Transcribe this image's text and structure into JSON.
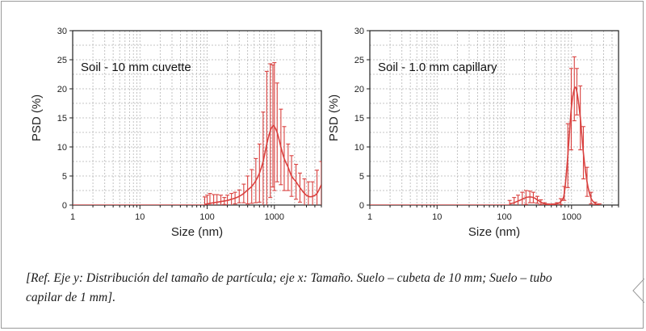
{
  "chart_data": [
    {
      "type": "line",
      "title": "",
      "annotation": "Soil - 10 mm cuvette",
      "xlabel": "Size (nm)",
      "ylabel": "PSD (%)",
      "xscale": "log",
      "xlim": [
        1,
        5000
      ],
      "ylim": [
        0,
        30
      ],
      "xticks": [
        1,
        10,
        100,
        1000
      ],
      "xtick_labels": [
        "1",
        "10",
        "100",
        "1000"
      ],
      "yticks": [
        0,
        5,
        10,
        15,
        20,
        25,
        30
      ],
      "ytick_labels": [
        "0",
        "5",
        "10",
        "15",
        "20",
        "25",
        "30"
      ],
      "grid": true,
      "color": "#d9413f",
      "series": [
        {
          "x": [
            92,
            100,
            110,
            125,
            140,
            160,
            180,
            200,
            230,
            260,
            300,
            350,
            400,
            460,
            530,
            600,
            680,
            770,
            870,
            950,
            1000,
            1100,
            1250,
            1400,
            1600,
            1800,
            2100,
            2400,
            2800,
            3200,
            3700,
            4300,
            5000
          ],
          "y": [
            0.1,
            0.2,
            0.3,
            0.4,
            0.5,
            0.6,
            0.7,
            0.8,
            1.0,
            1.2,
            1.5,
            2.0,
            2.6,
            3.2,
            4.2,
            5.5,
            7.5,
            10.5,
            12.8,
            13.6,
            13.5,
            12.5,
            10.0,
            8.0,
            6.5,
            5.0,
            4.0,
            3.0,
            2.0,
            1.5,
            1.5,
            2.0,
            3.5
          ],
          "err": [
            1.3,
            1.5,
            1.7,
            1.4,
            1.3,
            1.1,
            0.6,
            0.9,
            1.0,
            1.0,
            1.1,
            1.6,
            2.4,
            2.9,
            3.8,
            5.0,
            8.5,
            12.5,
            11.5,
            10.5,
            11.0,
            8.5,
            6.5,
            5.5,
            4.0,
            3.5,
            3.0,
            2.5,
            2.5,
            2.5,
            2.5,
            4.0,
            4.0
          ]
        }
      ]
    },
    {
      "type": "line",
      "title": "",
      "annotation": "Soil - 1.0 mm capillary",
      "xlabel": "Size (nm)",
      "ylabel": "PSD (%)",
      "xscale": "log",
      "xlim": [
        1,
        5000
      ],
      "ylim": [
        0,
        30
      ],
      "xticks": [
        1,
        10,
        100,
        1000
      ],
      "xtick_labels": [
        "1",
        "10",
        "100",
        "1000"
      ],
      "yticks": [
        0,
        5,
        10,
        15,
        20,
        25,
        30
      ],
      "ytick_labels": [
        "0",
        "5",
        "10",
        "15",
        "20",
        "25",
        "30"
      ],
      "grid": true,
      "color": "#d9413f",
      "series": [
        {
          "x": [
            120,
            140,
            160,
            185,
            210,
            240,
            270,
            310,
            350,
            400,
            450,
            520,
            600,
            690,
            780,
            880,
            990,
            1100,
            1200,
            1350,
            1500,
            1700,
            1950,
            2250,
            2600
          ],
          "y": [
            0.2,
            0.4,
            0.7,
            1.0,
            1.3,
            1.4,
            1.3,
            0.9,
            0.5,
            0.2,
            0.1,
            0.1,
            0.2,
            0.6,
            2.0,
            8.5,
            16.5,
            20.0,
            19.5,
            15.0,
            9.0,
            4.0,
            1.2,
            0.3,
            0.1
          ],
          "err": [
            0.6,
            0.9,
            1.0,
            1.2,
            1.2,
            1.0,
            0.9,
            0.6,
            0.4,
            0.2,
            0.1,
            0.1,
            0.2,
            0.5,
            1.2,
            5.5,
            7.0,
            5.5,
            4.0,
            5.5,
            4.5,
            2.5,
            1.0,
            0.2,
            0.1
          ]
        }
      ]
    }
  ],
  "caption": "[Ref. Eje y: Distribución del tamaño de partícula; eje x: Tamaño. Suelo – cubeta de 10 mm; Suelo – tubo capilar de 1 mm]."
}
